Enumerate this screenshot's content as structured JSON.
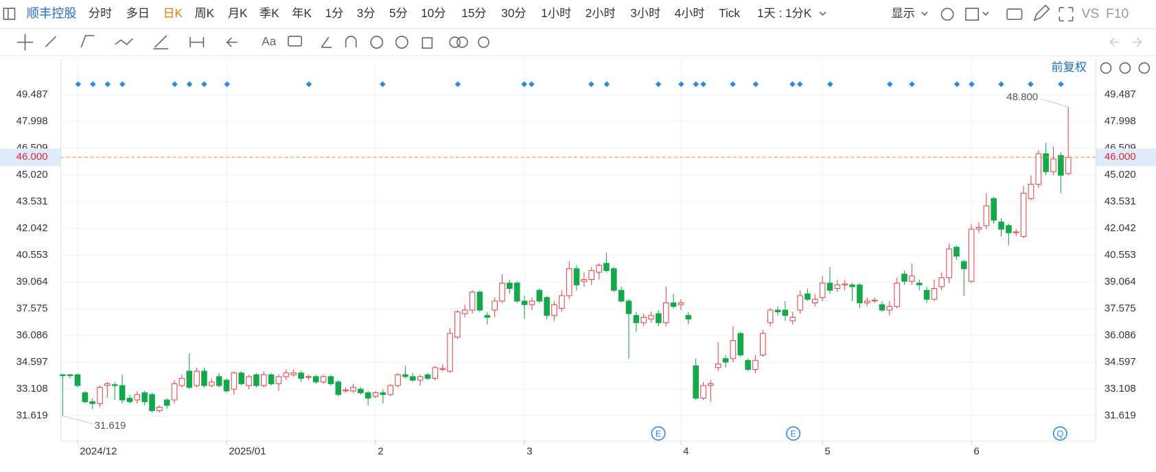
{
  "toolbar": {
    "stock": "顺丰控股",
    "periods": [
      "分时",
      "多日",
      "日K",
      "周K",
      "月K",
      "季K",
      "年K",
      "1分",
      "3分",
      "5分",
      "10分",
      "15分",
      "30分",
      "1小时",
      "2小时",
      "3小时",
      "4小时",
      "Tick",
      "1天 : 1分K"
    ],
    "active_period": "日K",
    "display": "显示",
    "vs": "VS",
    "f10": "F10",
    "text_tool": "Aa"
  },
  "chart_data": {
    "type": "candlestick",
    "adjust": "前复权",
    "up_color": "#e8464a",
    "down_color": "#13a94b",
    "categories": [
      null,
      null,
      "2024/12",
      null,
      null,
      null,
      null,
      null,
      null,
      null,
      null,
      null,
      null,
      null,
      null,
      null,
      null,
      null,
      null,
      null,
      null,
      null,
      "2025/01",
      null,
      null,
      null,
      null,
      null,
      null,
      null,
      null,
      null,
      null,
      null,
      null,
      null,
      null,
      null,
      null,
      null,
      null,
      null,
      "2",
      null,
      null,
      null,
      null,
      null,
      null,
      null,
      null,
      null,
      null,
      null,
      null,
      null,
      null,
      null,
      null,
      null,
      null,
      null,
      "3",
      null,
      null,
      null,
      null,
      null,
      null,
      null,
      null,
      null,
      null,
      null,
      null,
      null,
      null,
      null,
      null,
      null,
      null,
      null,
      null,
      "4",
      null,
      null,
      null,
      null,
      null,
      null,
      null,
      null,
      null,
      null,
      null,
      null,
      null,
      null,
      null,
      null,
      null,
      null,
      "5",
      null,
      null,
      null,
      null,
      null,
      null,
      null,
      null,
      null,
      null,
      null,
      null,
      null,
      null,
      null,
      null,
      null,
      null,
      null,
      "6",
      null,
      null,
      null,
      null,
      null,
      null,
      null,
      null,
      null,
      null,
      null,
      null,
      null
    ],
    "candles": [
      [
        33.9,
        33.95,
        31.619,
        33.85
      ],
      [
        33.9,
        33.95,
        33.7,
        33.85
      ],
      [
        33.9,
        33.95,
        33.2,
        33.3
      ],
      [
        32.9,
        33.0,
        32.3,
        32.4
      ],
      [
        32.4,
        32.6,
        32.0,
        32.3
      ],
      [
        32.3,
        33.3,
        32.1,
        33.2
      ],
      [
        33.3,
        33.5,
        32.6,
        33.4
      ],
      [
        33.35,
        33.5,
        32.5,
        33.3
      ],
      [
        33.3,
        33.9,
        32.3,
        32.5
      ],
      [
        32.6,
        32.8,
        32.3,
        32.4
      ],
      [
        32.5,
        33.0,
        32.3,
        32.8
      ],
      [
        32.9,
        33.0,
        32.2,
        32.4
      ],
      [
        32.8,
        32.9,
        31.8,
        31.9
      ],
      [
        31.9,
        32.2,
        31.8,
        32.1
      ],
      [
        32.5,
        32.6,
        32.0,
        32.2
      ],
      [
        32.5,
        33.6,
        32.3,
        33.4
      ],
      [
        33.3,
        33.9,
        33.2,
        33.7
      ],
      [
        34.1,
        35.1,
        33.1,
        33.2
      ],
      [
        33.3,
        34.3,
        33.2,
        34.1
      ],
      [
        34.1,
        34.3,
        33.2,
        33.3
      ],
      [
        33.3,
        33.7,
        33.2,
        33.5
      ],
      [
        33.8,
        34.0,
        33.2,
        33.3
      ],
      [
        33.6,
        33.7,
        32.9,
        33.0
      ],
      [
        33.1,
        34.1,
        32.8,
        34.0
      ],
      [
        34.0,
        34.1,
        33.3,
        33.4
      ],
      [
        33.3,
        33.9,
        33.1,
        33.8
      ],
      [
        33.9,
        34.0,
        33.2,
        33.3
      ],
      [
        33.3,
        34.1,
        33.2,
        33.9
      ],
      [
        33.9,
        34.0,
        33.3,
        33.4
      ],
      [
        33.4,
        33.9,
        33.0,
        33.8
      ],
      [
        33.8,
        34.2,
        33.6,
        34.0
      ],
      [
        33.9,
        34.2,
        33.8,
        34.0
      ],
      [
        34.0,
        34.1,
        33.5,
        33.7
      ],
      [
        33.8,
        33.9,
        33.6,
        33.8
      ],
      [
        33.8,
        33.9,
        33.4,
        33.5
      ],
      [
        33.5,
        33.9,
        33.4,
        33.8
      ],
      [
        33.8,
        33.9,
        33.3,
        33.4
      ],
      [
        33.5,
        33.6,
        32.7,
        32.8
      ],
      [
        33.0,
        33.2,
        32.9,
        33.05
      ],
      [
        33.0,
        33.4,
        32.9,
        33.2
      ],
      [
        33.1,
        33.2,
        32.8,
        32.9
      ],
      [
        32.9,
        33.0,
        32.2,
        32.6
      ],
      [
        32.7,
        33.0,
        32.6,
        32.9
      ],
      [
        32.9,
        33.1,
        32.3,
        32.8
      ],
      [
        32.8,
        33.4,
        32.7,
        33.3
      ],
      [
        33.3,
        34.0,
        33.2,
        33.9
      ],
      [
        33.9,
        34.4,
        33.7,
        33.8
      ],
      [
        33.8,
        34.0,
        33.5,
        33.6
      ],
      [
        33.6,
        33.9,
        33.3,
        33.8
      ],
      [
        33.9,
        34.0,
        33.6,
        33.7
      ],
      [
        33.7,
        34.4,
        33.6,
        34.3
      ],
      [
        34.2,
        34.5,
        34.1,
        34.25
      ],
      [
        34.1,
        36.5,
        34.0,
        36.2
      ],
      [
        36.0,
        37.5,
        35.9,
        37.4
      ],
      [
        37.3,
        37.8,
        37.1,
        37.5
      ],
      [
        37.5,
        38.6,
        37.3,
        38.5
      ],
      [
        38.5,
        38.6,
        37.4,
        37.5
      ],
      [
        37.2,
        37.4,
        36.7,
        37.1
      ],
      [
        37.5,
        38.2,
        37.1,
        38.0
      ],
      [
        38.0,
        39.5,
        37.9,
        39.0
      ],
      [
        39.0,
        39.2,
        38.4,
        38.7
      ],
      [
        39.0,
        39.1,
        37.9,
        38.0
      ],
      [
        38.0,
        38.3,
        37.0,
        37.8
      ],
      [
        37.8,
        38.2,
        37.5,
        38.0
      ],
      [
        38.6,
        38.7,
        37.9,
        38.0
      ],
      [
        38.2,
        38.3,
        37.0,
        37.2
      ],
      [
        37.2,
        38.0,
        36.9,
        37.8
      ],
      [
        37.6,
        38.6,
        37.4,
        38.3
      ],
      [
        38.3,
        40.2,
        38.1,
        39.8
      ],
      [
        39.8,
        40.0,
        38.6,
        38.9
      ],
      [
        39.1,
        39.6,
        38.8,
        39.2
      ],
      [
        39.2,
        39.9,
        38.9,
        39.7
      ],
      [
        39.6,
        40.1,
        39.2,
        40.0
      ],
      [
        40.1,
        40.7,
        39.6,
        39.7
      ],
      [
        39.8,
        39.9,
        38.5,
        38.6
      ],
      [
        38.6,
        38.8,
        37.9,
        38.0
      ],
      [
        38.0,
        38.1,
        34.8,
        37.3
      ],
      [
        37.2,
        37.4,
        36.3,
        36.8
      ],
      [
        36.8,
        37.3,
        36.6,
        37.1
      ],
      [
        37.0,
        37.4,
        36.8,
        37.2
      ],
      [
        37.3,
        37.5,
        36.6,
        36.8
      ],
      [
        36.8,
        38.8,
        36.6,
        37.9
      ],
      [
        37.9,
        38.4,
        37.6,
        37.7
      ],
      [
        37.8,
        38.1,
        37.5,
        37.9
      ],
      [
        37.2,
        37.4,
        36.7,
        37.0
      ],
      [
        34.4,
        34.8,
        32.5,
        32.6
      ],
      [
        32.6,
        33.5,
        32.5,
        33.3
      ],
      [
        33.3,
        33.6,
        32.4,
        33.4
      ],
      [
        34.3,
        35.7,
        34.1,
        34.5
      ],
      [
        34.8,
        35.0,
        34.3,
        34.6
      ],
      [
        34.8,
        36.6,
        34.6,
        35.8
      ],
      [
        36.2,
        36.3,
        34.9,
        35.0
      ],
      [
        34.7,
        34.8,
        34.1,
        34.2
      ],
      [
        34.2,
        35.0,
        34.0,
        34.7
      ],
      [
        35.0,
        36.4,
        34.9,
        36.2
      ],
      [
        36.8,
        37.6,
        36.6,
        37.5
      ],
      [
        37.5,
        37.7,
        37.2,
        37.4
      ],
      [
        37.5,
        38.0,
        36.9,
        37.2
      ],
      [
        36.9,
        37.4,
        36.7,
        37.1
      ],
      [
        37.5,
        38.6,
        37.3,
        38.3
      ],
      [
        38.4,
        38.7,
        38.0,
        38.1
      ],
      [
        37.9,
        38.4,
        37.7,
        38.1
      ],
      [
        38.2,
        39.4,
        38.0,
        39.0
      ],
      [
        39.0,
        39.9,
        38.4,
        38.6
      ],
      [
        38.7,
        39.2,
        38.5,
        38.9
      ],
      [
        38.9,
        39.2,
        38.6,
        38.95
      ],
      [
        38.9,
        39.0,
        38.0,
        38.8
      ],
      [
        38.9,
        39.0,
        37.6,
        37.9
      ],
      [
        37.9,
        38.2,
        37.7,
        38.0
      ],
      [
        38.0,
        38.2,
        37.9,
        38.05
      ],
      [
        37.8,
        38.0,
        37.4,
        37.5
      ],
      [
        37.5,
        38.0,
        37.2,
        37.7
      ],
      [
        37.7,
        39.3,
        37.6,
        39.0
      ],
      [
        39.5,
        39.7,
        38.9,
        39.1
      ],
      [
        39.1,
        40.1,
        38.9,
        39.4
      ],
      [
        39.0,
        39.2,
        38.6,
        38.9
      ],
      [
        38.6,
        38.8,
        37.9,
        38.1
      ],
      [
        38.1,
        39.2,
        38.0,
        38.7
      ],
      [
        38.8,
        39.6,
        38.6,
        39.3
      ],
      [
        39.3,
        41.2,
        39.0,
        40.9
      ],
      [
        41.0,
        41.1,
        40.3,
        40.5
      ],
      [
        40.2,
        40.3,
        38.3,
        39.8
      ],
      [
        39.1,
        42.3,
        39.0,
        42.0
      ],
      [
        42.0,
        42.4,
        41.8,
        42.1
      ],
      [
        42.2,
        44.0,
        42.0,
        43.3
      ],
      [
        43.7,
        43.8,
        42.3,
        42.5
      ],
      [
        42.4,
        42.6,
        41.6,
        42.0
      ],
      [
        42.2,
        42.3,
        41.1,
        41.8
      ],
      [
        41.8,
        42.0,
        41.6,
        41.85
      ],
      [
        41.6,
        44.4,
        41.5,
        44.0
      ],
      [
        43.7,
        45.0,
        43.6,
        44.5
      ],
      [
        44.5,
        46.4,
        44.3,
        46.2
      ],
      [
        46.2,
        46.8,
        45.0,
        45.2
      ],
      [
        45.2,
        46.6,
        45.0,
        45.9
      ],
      [
        46.1,
        46.3,
        44.0,
        45.0
      ],
      [
        45.1,
        48.8,
        45.0,
        46.0
      ]
    ],
    "ylim": [
      30.225,
      51.459
    ],
    "yticks": [
      31.619,
      33.108,
      34.597,
      36.086,
      37.575,
      39.064,
      40.553,
      42.042,
      43.531,
      {
        "value": 45.02,
        "label": "45.020"
      },
      46.509,
      47.998,
      49.487
    ],
    "current_price": {
      "value": 46,
      "label": "46.000"
    },
    "max_label": {
      "value": 48.8,
      "label": "48.800"
    },
    "min_label": {
      "value": 31.619,
      "label": "31.619"
    },
    "event_markers": [
      "E",
      "E",
      "Q"
    ]
  }
}
